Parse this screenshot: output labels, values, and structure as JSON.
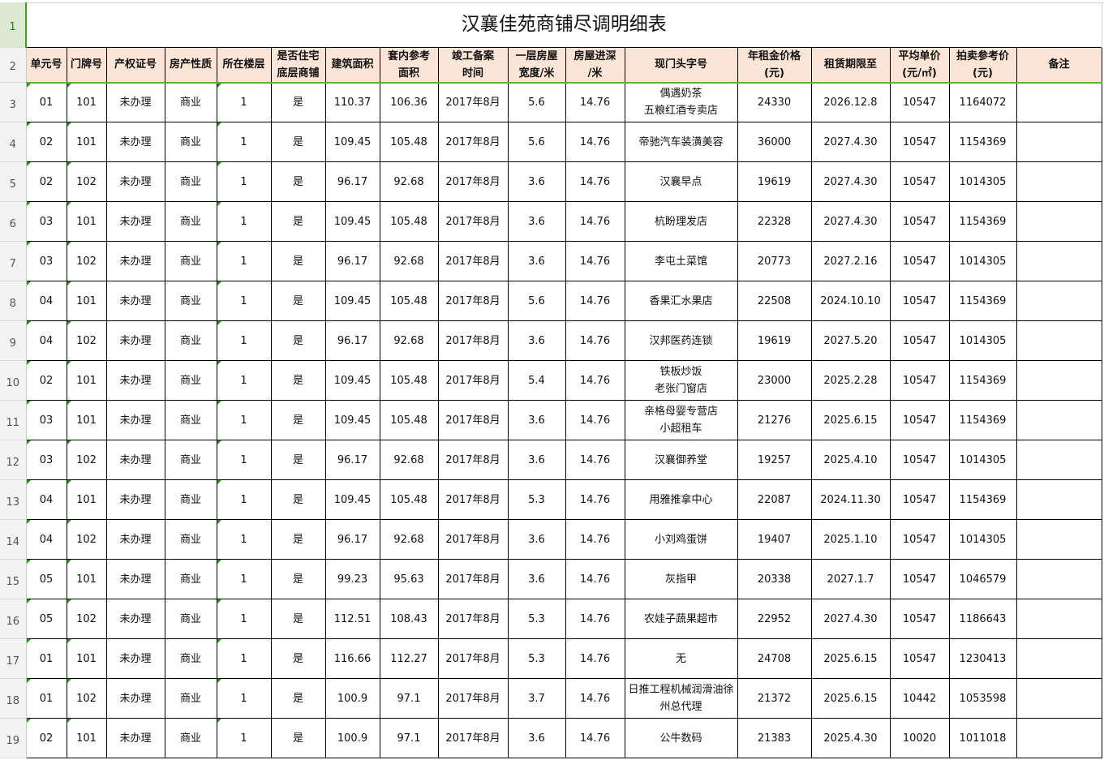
{
  "sheet": {
    "title": "汉襄佳苑商铺尽调明细表",
    "row_numbers": [
      "1",
      "2",
      "3",
      "4",
      "5",
      "6",
      "7",
      "8",
      "9",
      "10",
      "11",
      "12",
      "13",
      "14",
      "15",
      "16",
      "17",
      "18",
      "19"
    ],
    "headers": [
      [
        "单元号"
      ],
      [
        "门牌号"
      ],
      [
        "产权证号"
      ],
      [
        "房产性质"
      ],
      [
        "所在楼层"
      ],
      [
        "是否住宅",
        "底层商铺"
      ],
      [
        "建筑面积"
      ],
      [
        "套内参考",
        "面积"
      ],
      [
        "竣工备案",
        "时间"
      ],
      [
        "一层房屋",
        "宽度/米"
      ],
      [
        "房屋进深",
        "/米"
      ],
      [
        "现门头字号"
      ],
      [
        "年租金价格",
        "(元)"
      ],
      [
        "租赁期限至"
      ],
      [
        "平均单价",
        "(元/㎡)"
      ],
      [
        "拍卖参考价",
        "(元)"
      ],
      [
        "备注"
      ]
    ],
    "rows": [
      [
        "01",
        "101",
        "未办理",
        "商业",
        "1",
        "是",
        "110.37",
        "106.36",
        "2017年8月",
        "5.6",
        "14.76",
        [
          "偶遇奶茶",
          "五粮红酒专卖店"
        ],
        "24330",
        "2026.12.8",
        "10547",
        "1164072",
        ""
      ],
      [
        "02",
        "101",
        "未办理",
        "商业",
        "1",
        "是",
        "109.45",
        "105.48",
        "2017年8月",
        "5.6",
        "14.76",
        [
          "帝驰汽车装潢美容"
        ],
        "36000",
        "2027.4.30",
        "10547",
        "1154369",
        ""
      ],
      [
        "02",
        "102",
        "未办理",
        "商业",
        "1",
        "是",
        "96.17",
        "92.68",
        "2017年8月",
        "3.6",
        "14.76",
        [
          "汉襄早点"
        ],
        "19619",
        "2027.4.30",
        "10547",
        "1014305",
        ""
      ],
      [
        "03",
        "101",
        "未办理",
        "商业",
        "1",
        "是",
        "109.45",
        "105.48",
        "2017年8月",
        "3.6",
        "14.76",
        [
          "杭盼理发店"
        ],
        "22328",
        "2027.4.30",
        "10547",
        "1154369",
        ""
      ],
      [
        "03",
        "102",
        "未办理",
        "商业",
        "1",
        "是",
        "96.17",
        "92.68",
        "2017年8月",
        "3.6",
        "14.76",
        [
          "李屯土菜馆"
        ],
        "20773",
        "2027.2.16",
        "10547",
        "1014305",
        ""
      ],
      [
        "04",
        "101",
        "未办理",
        "商业",
        "1",
        "是",
        "109.45",
        "105.48",
        "2017年8月",
        "5.6",
        "14.76",
        [
          "香果汇水果店"
        ],
        "22508",
        "2024.10.10",
        "10547",
        "1154369",
        ""
      ],
      [
        "04",
        "102",
        "未办理",
        "商业",
        "1",
        "是",
        "96.17",
        "92.68",
        "2017年8月",
        "3.6",
        "14.76",
        [
          "汉邦医药连锁"
        ],
        "19619",
        "2027.5.20",
        "10547",
        "1014305",
        ""
      ],
      [
        "02",
        "101",
        "未办理",
        "商业",
        "1",
        "是",
        "109.45",
        "105.48",
        "2017年8月",
        "5.4",
        "14.76",
        [
          "铁板炒饭",
          "老张门窗店"
        ],
        "23000",
        "2025.2.28",
        "10547",
        "1154369",
        ""
      ],
      [
        "03",
        "101",
        "未办理",
        "商业",
        "1",
        "是",
        "109.45",
        "105.48",
        "2017年8月",
        "3.6",
        "14.76",
        [
          "亲格母婴专营店",
          "小超租车"
        ],
        "21276",
        "2025.6.15",
        "10547",
        "1154369",
        ""
      ],
      [
        "03",
        "102",
        "未办理",
        "商业",
        "1",
        "是",
        "96.17",
        "92.68",
        "2017年8月",
        "3.6",
        "14.76",
        [
          "汉襄御养堂"
        ],
        "19257",
        "2025.4.10",
        "10547",
        "1014305",
        ""
      ],
      [
        "04",
        "101",
        "未办理",
        "商业",
        "1",
        "是",
        "109.45",
        "105.48",
        "2017年8月",
        "5.3",
        "14.76",
        [
          "用雅推拿中心"
        ],
        "22087",
        "2024.11.30",
        "10547",
        "1154369",
        ""
      ],
      [
        "04",
        "102",
        "未办理",
        "商业",
        "1",
        "是",
        "96.17",
        "92.68",
        "2017年8月",
        "3.6",
        "14.76",
        [
          "小刘鸡蛋饼"
        ],
        "19407",
        "2025.1.10",
        "10547",
        "1014305",
        ""
      ],
      [
        "05",
        "101",
        "未办理",
        "商业",
        "1",
        "是",
        "99.23",
        "95.63",
        "2017年8月",
        "3.6",
        "14.76",
        [
          "灰指甲"
        ],
        "20338",
        "2027.1.7",
        "10547",
        "1046579",
        ""
      ],
      [
        "05",
        "102",
        "未办理",
        "商业",
        "1",
        "是",
        "112.51",
        "108.43",
        "2017年8月",
        "5.3",
        "14.76",
        [
          "农娃子蔬果超市"
        ],
        "22952",
        "2027.4.30",
        "10547",
        "1186643",
        ""
      ],
      [
        "01",
        "101",
        "未办理",
        "商业",
        "1",
        "是",
        "116.66",
        "112.27",
        "2017年8月",
        "5.3",
        "14.76",
        [
          "无"
        ],
        "24708",
        "2025.6.15",
        "10547",
        "1230413",
        ""
      ],
      [
        "01",
        "102",
        "未办理",
        "商业",
        "1",
        "是",
        "100.9",
        "97.1",
        "2017年8月",
        "3.7",
        "14.76",
        [
          "日推工程机械润滑油徐",
          "州总代理"
        ],
        "21372",
        "2025.6.15",
        "10442",
        "1053598",
        ""
      ],
      [
        "02",
        "101",
        "未办理",
        "商业",
        "1",
        "是",
        "100.9",
        "97.1",
        "2017年8月",
        "3.6",
        "14.76",
        [
          "公牛数码"
        ],
        "21383",
        "2025.4.30",
        "10020",
        "1011018",
        ""
      ]
    ]
  },
  "colors": {
    "header_fill": "#fce4d6",
    "selection_green": "#3c9a2a",
    "error_triangle": "#2e8b1e"
  }
}
